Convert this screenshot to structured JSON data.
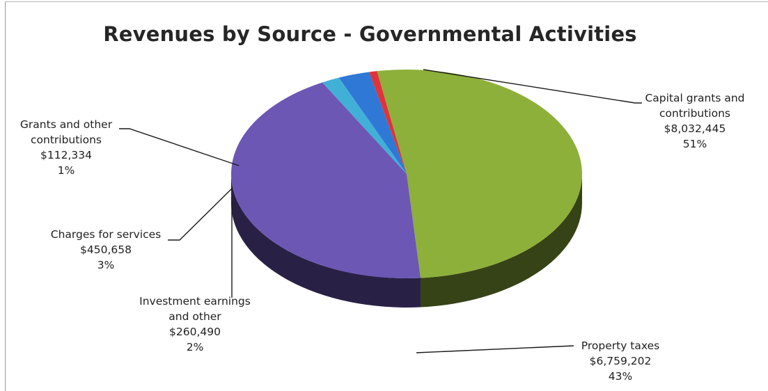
{
  "chart_data": {
    "type": "pie",
    "title": "Revenues by Source - Governmental Activities",
    "slices": [
      {
        "label": "Capital grants and contributions",
        "amount": "$8,032,445",
        "percent": "51%",
        "value": 8032445,
        "color": "#8db03a"
      },
      {
        "label": "Property taxes",
        "amount": "$6,759,202",
        "percent": "43%",
        "value": 6759202,
        "color": "#6c57b5"
      },
      {
        "label": "Investment earnings and other",
        "amount": "$260,490",
        "percent": "2%",
        "value": 260490,
        "color": "#41b0d7"
      },
      {
        "label": "Charges for services",
        "amount": "$450,658",
        "percent": "3%",
        "value": 450658,
        "color": "#2f78d6"
      },
      {
        "label": "Grants and other contributions",
        "amount": "$112,334",
        "percent": "1%",
        "value": 112334,
        "color": "#e0333a"
      }
    ]
  },
  "labels": {
    "capital": {
      "line1": "Capital grants and",
      "line2": "contributions",
      "amount": "$8,032,445",
      "percent": "51%"
    },
    "property": {
      "line1": "Property taxes",
      "amount": "$6,759,202",
      "percent": "43%"
    },
    "investment": {
      "line1": "Investment earnings",
      "line2": "and other",
      "amount": "$260,490",
      "percent": "2%"
    },
    "charges": {
      "line1": "Charges for services",
      "amount": "$450,658",
      "percent": "3%"
    },
    "grants": {
      "line1": "Grants and other",
      "line2": "contributions",
      "amount": "$112,334",
      "percent": "1%"
    }
  }
}
